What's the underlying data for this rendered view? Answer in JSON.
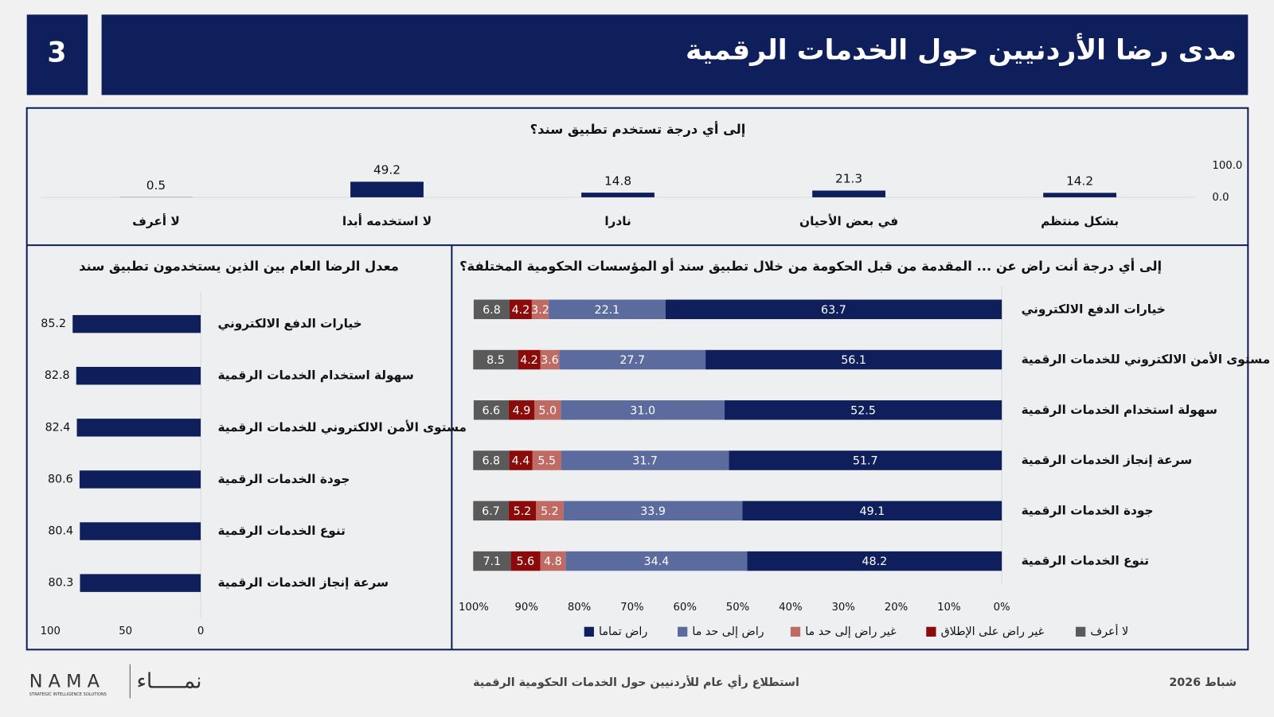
{
  "header": {
    "number": "3",
    "title": "مدى رضا الأردنيين حول الخدمات الرقمية"
  },
  "chart_data": [
    {
      "type": "column",
      "title": "إلى أي درجة تستخدم تطبيق سند؟",
      "categories": [
        "بشكل منتظم",
        "في بعض الأحيان",
        "نادرا",
        "لا استخدمه أبدا",
        "لا أعرف"
      ],
      "values": [
        14.2,
        21.3,
        14.8,
        49.2,
        0.5
      ],
      "color": "#0f1f5c",
      "ylim": [
        0,
        100
      ],
      "yticks": [
        {
          "value": 0,
          "label": "0.0"
        },
        {
          "value": 100,
          "label": "100.0"
        }
      ]
    },
    {
      "type": "stacked_bar",
      "title": "إلى أي درجة أنت راض عن ... المقدمة من قبل الحكومة من خلال تطبيق سند أو المؤسسات الحكومية المختلفة؟",
      "categories": [
        "خيارات الدفع الالكتروني",
        "مستوى الأمن الالكتروني للخدمات الرقمية",
        "سهولة استخدام الخدمات الرقمية",
        "سرعة إنجاز الخدمات الرقمية",
        "جودة الخدمات الرقمية",
        "تنوع الخدمات الرقمية"
      ],
      "series": [
        {
          "name": "راض تماما",
          "color": "#0f1f5c",
          "values": [
            63.7,
            56.1,
            52.5,
            51.7,
            49.1,
            48.2
          ]
        },
        {
          "name": "راض إلى حد ما",
          "color": "#5b6b9e",
          "values": [
            22.1,
            27.7,
            31.0,
            31.7,
            33.9,
            34.4
          ],
          "value_labels": [
            "22.1",
            "27.7",
            "31.0",
            "31.7",
            "33.9",
            "34.4"
          ]
        },
        {
          "name": "غير راض إلى حد ما",
          "color": "#bf6a62",
          "values": [
            3.2,
            3.6,
            5.0,
            5.5,
            5.2,
            4.8
          ],
          "value_labels": [
            "3.2",
            "3.6",
            "5.0",
            "5.5",
            "5.2",
            "4.8"
          ]
        },
        {
          "name": "غير راض على الإطلاق",
          "color": "#8b0a0a",
          "values": [
            4.2,
            4.2,
            4.9,
            4.4,
            5.2,
            5.6
          ]
        },
        {
          "name": "لا أعرف",
          "color": "#5a5a5a",
          "values": [
            6.8,
            8.5,
            6.6,
            6.8,
            6.7,
            7.1
          ]
        }
      ],
      "xlim": [
        0,
        100
      ],
      "x_reversed": true,
      "legend": "bottom",
      "xticks": [
        {
          "value": 0,
          "label": "0%"
        },
        {
          "value": 10,
          "label": "10%"
        },
        {
          "value": 20,
          "label": "20%"
        },
        {
          "value": 30,
          "label": "30%"
        },
        {
          "value": 40,
          "label": "40%"
        },
        {
          "value": 50,
          "label": "50%"
        },
        {
          "value": 60,
          "label": "60%"
        },
        {
          "value": 70,
          "label": "70%"
        },
        {
          "value": 80,
          "label": "80%"
        },
        {
          "value": 90,
          "label": "90%"
        },
        {
          "value": 100,
          "label": "100%"
        }
      ]
    },
    {
      "type": "bar",
      "title": "معدل الرضا العام بين الذين يستخدمون تطبيق سند",
      "categories": [
        "خيارات الدفع الالكتروني",
        "سهولة استخدام الخدمات الرقمية",
        "مستوى الأمن الالكتروني للخدمات الرقمية",
        "جودة الخدمات الرقمية",
        "تنوع الخدمات الرقمية",
        "سرعة إنجاز الخدمات الرقمية"
      ],
      "values": [
        85.2,
        82.8,
        82.4,
        80.6,
        80.4,
        80.3
      ],
      "color": "#0f1f5c",
      "xlim": [
        0,
        100
      ],
      "x_reversed": true,
      "xticks": [
        0,
        50,
        100
      ]
    }
  ],
  "footer": {
    "date": "شباط 2026",
    "title": "استطلاع رأي عام للأردنيين حول الخدمات الحكومية الرقمية",
    "logo_latin": "N A M A",
    "logo_sub": "STRATEGIC INTELLIGENCE SOLUTIONS",
    "logo_arabic": "نمـــــاء"
  }
}
